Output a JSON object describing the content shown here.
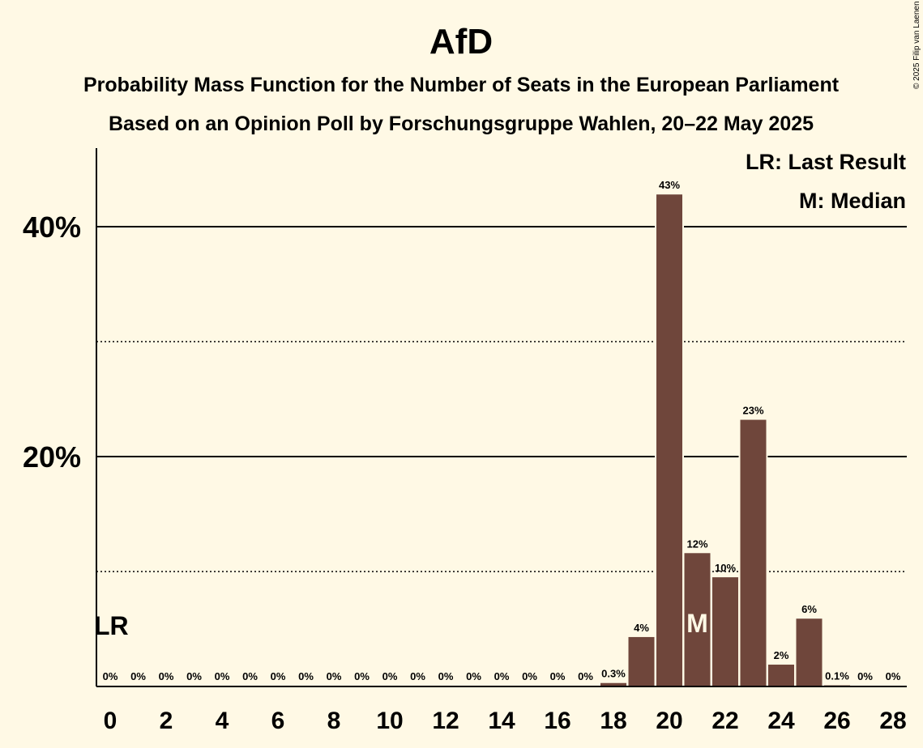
{
  "chart_data": {
    "type": "bar",
    "title": "AfD",
    "subtitle": "Probability Mass Function for the Number of Seats in the European Parliament",
    "subtitle2": "Based on an Opinion Poll by Forschungsgruppe Wahlen, 20–22 May 2025",
    "copyright": "© 2025 Filip van Laenen",
    "x": [
      0,
      1,
      2,
      3,
      4,
      5,
      6,
      7,
      8,
      9,
      10,
      11,
      12,
      13,
      14,
      15,
      16,
      17,
      18,
      19,
      20,
      21,
      22,
      23,
      24,
      25,
      26,
      27,
      28
    ],
    "values": [
      0,
      0,
      0,
      0,
      0,
      0,
      0,
      0,
      0,
      0,
      0,
      0,
      0,
      0,
      0,
      0,
      0,
      0,
      0.3,
      4.3,
      42.8,
      11.6,
      9.5,
      23.2,
      1.9,
      5.9,
      0.1,
      0,
      0
    ],
    "data_labels": [
      "0%",
      "0%",
      "0%",
      "0%",
      "0%",
      "0%",
      "0%",
      "0%",
      "0%",
      "0%",
      "0%",
      "0%",
      "0%",
      "0%",
      "0%",
      "0%",
      "0%",
      "0%",
      "0.3%",
      "4%",
      "43%",
      "12%",
      "10%",
      "23%",
      "2%",
      "6%",
      "0.1%",
      "0%",
      "0%"
    ],
    "x_tick_labels": [
      "0",
      "2",
      "4",
      "6",
      "8",
      "10",
      "12",
      "14",
      "16",
      "18",
      "20",
      "22",
      "24",
      "26",
      "28"
    ],
    "y_tick_labels": [
      "20%",
      "40%"
    ],
    "ylim": [
      0,
      45
    ],
    "grid_major": [
      20,
      40
    ],
    "grid_minor": [
      10,
      30
    ],
    "last_result_seat": 0,
    "median_seat": 21,
    "lr_label": "LR",
    "median_label": "M",
    "legend": [
      "LR: Last Result",
      "M: Median"
    ],
    "legend_position": "top-right",
    "colors": {
      "bar": "#6f463b",
      "background": "#fff9e5",
      "text": "#000000"
    }
  }
}
